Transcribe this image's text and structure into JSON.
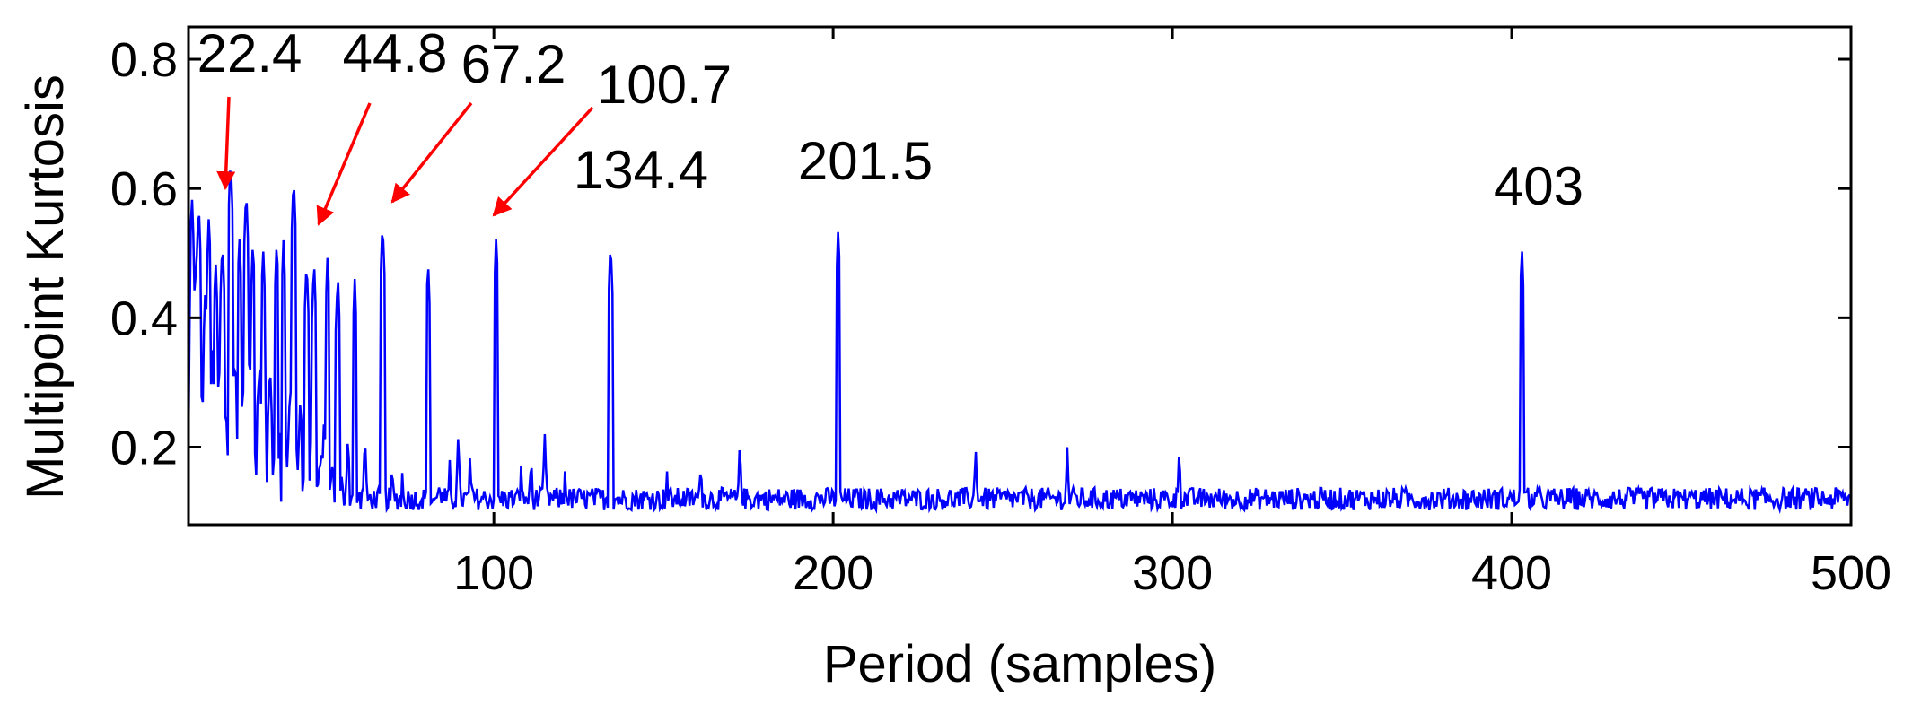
{
  "chart_data": {
    "type": "line",
    "xlabel": "Period (samples)",
    "ylabel": "Multipoint Kurtosis",
    "xlim": [
      10,
      500
    ],
    "ylim": [
      0.08,
      0.85
    ],
    "xticks": [
      100,
      200,
      300,
      400,
      500
    ],
    "yticks": [
      0.2,
      0.4,
      0.6,
      0.8
    ],
    "grid": false,
    "colors": {
      "line": "#0000ff",
      "arrow": "#ff0000",
      "axis": "#000000"
    },
    "series": [
      {
        "values_note": "",
        "baseline": 0.12,
        "peaks": [
          {
            "x": 11,
            "y": 0.59
          },
          {
            "x": 12,
            "y": 0.48
          },
          {
            "x": 13,
            "y": 0.58
          },
          {
            "x": 14,
            "y": 0.3
          },
          {
            "x": 15,
            "y": 0.45
          },
          {
            "x": 16,
            "y": 0.56
          },
          {
            "x": 17,
            "y": 0.35
          },
          {
            "x": 18,
            "y": 0.49
          },
          {
            "x": 19,
            "y": 0.33
          },
          {
            "x": 20,
            "y": 0.52
          },
          {
            "x": 21,
            "y": 0.27
          },
          {
            "x": 22.4,
            "y": 0.65
          },
          {
            "x": 23.5,
            "y": 0.34
          },
          {
            "x": 25,
            "y": 0.53
          },
          {
            "x": 26,
            "y": 0.3
          },
          {
            "x": 27,
            "y": 0.6
          },
          {
            "x": 28,
            "y": 0.35
          },
          {
            "x": 29,
            "y": 0.52
          },
          {
            "x": 31,
            "y": 0.32
          },
          {
            "x": 32,
            "y": 0.51
          },
          {
            "x": 34,
            "y": 0.33
          },
          {
            "x": 36,
            "y": 0.52
          },
          {
            "x": 38,
            "y": 0.52
          },
          {
            "x": 40,
            "y": 0.3
          },
          {
            "x": 41,
            "y": 0.62
          },
          {
            "x": 43,
            "y": 0.28
          },
          {
            "x": 44.8,
            "y": 0.49
          },
          {
            "x": 47,
            "y": 0.49
          },
          {
            "x": 50,
            "y": 0.25
          },
          {
            "x": 51,
            "y": 0.5
          },
          {
            "x": 54,
            "y": 0.47
          },
          {
            "x": 57,
            "y": 0.22
          },
          {
            "x": 59,
            "y": 0.46
          },
          {
            "x": 62,
            "y": 0.22
          },
          {
            "x": 67.2,
            "y": 0.55
          },
          {
            "x": 70,
            "y": 0.18
          },
          {
            "x": 73,
            "y": 0.16
          },
          {
            "x": 80.6,
            "y": 0.49
          },
          {
            "x": 84,
            "y": 0.16
          },
          {
            "x": 87,
            "y": 0.18
          },
          {
            "x": 89.5,
            "y": 0.22
          },
          {
            "x": 93,
            "y": 0.19
          },
          {
            "x": 100.7,
            "y": 0.53
          },
          {
            "x": 108,
            "y": 0.17
          },
          {
            "x": 111,
            "y": 0.19
          },
          {
            "x": 115,
            "y": 0.22
          },
          {
            "x": 121,
            "y": 0.17
          },
          {
            "x": 134.4,
            "y": 0.52
          },
          {
            "x": 151,
            "y": 0.17
          },
          {
            "x": 161,
            "y": 0.18
          },
          {
            "x": 172.5,
            "y": 0.21
          },
          {
            "x": 201.5,
            "y": 0.54
          },
          {
            "x": 242,
            "y": 0.2
          },
          {
            "x": 269,
            "y": 0.2
          },
          {
            "x": 302,
            "y": 0.2
          },
          {
            "x": 403,
            "y": 0.51
          }
        ]
      }
    ],
    "annotations": [
      {
        "text": "22.4",
        "target_x": 22.4,
        "arrow": true
      },
      {
        "text": "44.8",
        "target_x": 44.8,
        "arrow": true
      },
      {
        "text": "67.2",
        "target_x": 67.2,
        "arrow": true
      },
      {
        "text": "100.7",
        "target_x": 100.7,
        "arrow": true
      },
      {
        "text": "134.4",
        "target_x": 134.4,
        "arrow": false
      },
      {
        "text": "201.5",
        "target_x": 201.5,
        "arrow": false
      },
      {
        "text": "403",
        "target_x": 403,
        "arrow": false
      }
    ]
  }
}
